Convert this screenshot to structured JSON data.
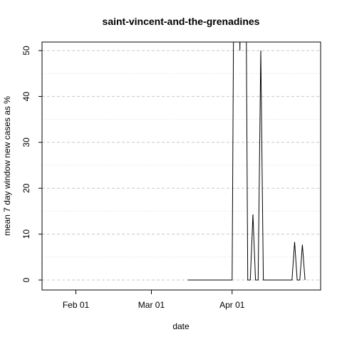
{
  "chart_data": {
    "type": "line",
    "title": "saint-vincent-and-the-grenadines",
    "xlabel": "date",
    "ylabel": "mean  7  day window new cases as %",
    "x_ticks": [
      "Feb 01",
      "Mar 01",
      "Apr 01"
    ],
    "y_ticks": [
      "0",
      "10",
      "20",
      "30",
      "40",
      "50"
    ],
    "ylim": [
      0,
      52
    ],
    "xlim": [
      "2020-01-19",
      "2020-05-05"
    ],
    "grid": true,
    "colors": {
      "line": "#000000",
      "grid": "#c8c8c8"
    },
    "series": [
      {
        "x": [
          "2020-03-15",
          "2020-03-16",
          "2020-03-17",
          "2020-03-18",
          "2020-03-19",
          "2020-03-20",
          "2020-03-21",
          "2020-03-22",
          "2020-03-23",
          "2020-03-24",
          "2020-03-25",
          "2020-03-26",
          "2020-03-27",
          "2020-03-28",
          "2020-03-29",
          "2020-03-30",
          "2020-03-31",
          "2020-04-01",
          "2020-04-02",
          "2020-04-03",
          "2020-04-04",
          "2020-04-05",
          "2020-04-06",
          "2020-04-07",
          "2020-04-08",
          "2020-04-09",
          "2020-04-10",
          "2020-04-11",
          "2020-04-12",
          "2020-04-13",
          "2020-04-14",
          "2020-04-15",
          "2020-04-16",
          "2020-04-17",
          "2020-04-18",
          "2020-04-19",
          "2020-04-20",
          "2020-04-21",
          "2020-04-22",
          "2020-04-23",
          "2020-04-24",
          "2020-04-25",
          "2020-04-26",
          "2020-04-27",
          "2020-04-28",
          "2020-04-29"
        ],
        "y": [
          0,
          0,
          0,
          0,
          0,
          0,
          0,
          0,
          0,
          0,
          0,
          0,
          0,
          0,
          0,
          0,
          0,
          0,
          100,
          100,
          50,
          100,
          100,
          0,
          0,
          14.3,
          0,
          0,
          50,
          0,
          0,
          0,
          0,
          0,
          0,
          0,
          0,
          0,
          0,
          0,
          0,
          8.3,
          0,
          0,
          7.7,
          0
        ]
      }
    ]
  }
}
